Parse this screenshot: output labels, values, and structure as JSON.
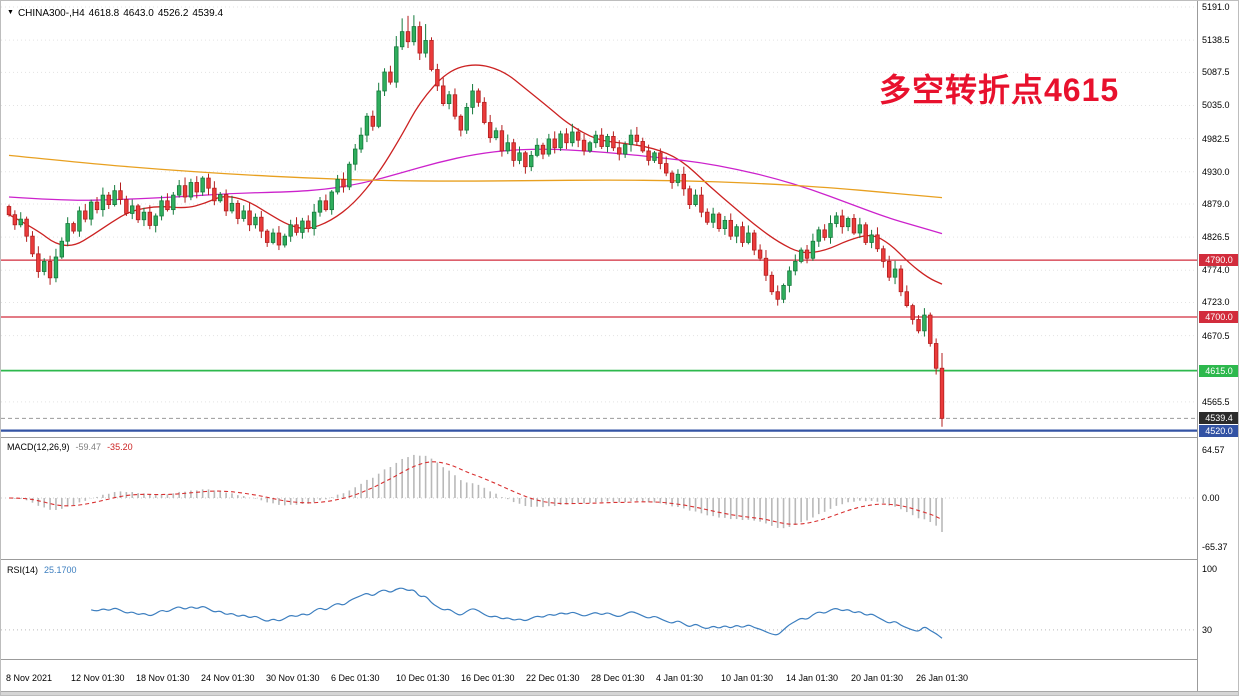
{
  "header": {
    "symbol": "CHINA300-,H4",
    "open": "4618.8",
    "high": "4643.0",
    "low": "4526.2",
    "close": "4539.4"
  },
  "annotation": {
    "text": "多空转折点4615",
    "color": "#e8112d"
  },
  "main_chart": {
    "price_ticks": [
      "5191.0",
      "5138.5",
      "5087.5",
      "5035.0",
      "4982.5",
      "4930.0",
      "4879.0",
      "4826.5",
      "4774.0",
      "4723.0",
      "4670.5",
      "4565.5"
    ],
    "badges": [
      {
        "label": "4790.0",
        "bg": "#d22c3c"
      },
      {
        "label": "4700.0",
        "bg": "#d22c3c"
      },
      {
        "label": "4615.0",
        "bg": "#2db84d"
      },
      {
        "label": "4539.4",
        "bg": "#2b2b2b"
      },
      {
        "label": "4520.0",
        "bg": "#3353a4"
      }
    ],
    "hlines": [
      {
        "price": 4790.0,
        "color": "#d22c3c",
        "style": "solid",
        "width": 1.3
      },
      {
        "price": 4700.0,
        "color": "#d22c3c",
        "style": "solid",
        "width": 1.3
      },
      {
        "price": 4615.0,
        "color": "#2db84d",
        "style": "solid",
        "width": 1.8
      },
      {
        "price": 4520.0,
        "color": "#3353a4",
        "style": "solid",
        "width": 2.2
      },
      {
        "price": 4539.4,
        "color": "#999999",
        "style": "dashed",
        "width": 1
      }
    ]
  },
  "macd_panel": {
    "label": "MACD(12,26,9)",
    "value_main": "-59.47",
    "value_signal": "-35.20",
    "axis": [
      "64.57",
      "0.00",
      "-65.37"
    ]
  },
  "rsi_panel": {
    "label": "RSI(14)",
    "value": "25.1700",
    "axis": [
      "100",
      "30"
    ],
    "level": 30
  },
  "time_axis": {
    "labels": [
      "8 Nov 2021",
      "12 Nov 01:30",
      "18 Nov 01:30",
      "24 Nov 01:30",
      "30 Nov 01:30",
      "6 Dec 01:30",
      "10 Dec 01:30",
      "16 Dec 01:30",
      "22 Dec 01:30",
      "28 Dec 01:30",
      "4 Jan 01:30",
      "10 Jan 01:30",
      "14 Jan 01:30",
      "20 Jan 01:30",
      "26 Jan 01:30"
    ]
  },
  "palette": {
    "bull_fill": "#2fae5d",
    "bull_stroke": "#157a3c",
    "bear_fill": "#ea3b3b",
    "bear_stroke": "#b31e1e",
    "macd_hist": "#b9b9b9",
    "macd_signal": "#d83030",
    "rsi_line": "#3c7ebf",
    "level_red": "#d22c3c",
    "level_green": "#2db84d",
    "level_blue": "#3353a4",
    "grid": "#e3e3e3"
  },
  "chart_data": {
    "type": "candlestick",
    "title": "CHINA300-,H4",
    "symbol": "CHINA300-",
    "timeframe": "H4",
    "x_start": "8 Nov 2021",
    "x_end": "26 Jan 01:30",
    "y_axis_range": [
      4513,
      5199
    ],
    "last_ohlc": {
      "open": 4618.8,
      "high": 4643.0,
      "low": 4526.2,
      "close": 4539.4
    },
    "current_price": 4539.4,
    "horizontal_levels": [
      4790.0,
      4700.0,
      4615.0,
      4520.0
    ],
    "open_first": 4875,
    "closes": [
      4862,
      4846,
      4855,
      4828,
      4800,
      4772,
      4788,
      4762,
      4795,
      4820,
      4848,
      4836,
      4868,
      4855,
      4882,
      4870,
      4893,
      4878,
      4900,
      4886,
      4864,
      4876,
      4854,
      4866,
      4845,
      4860,
      4884,
      4870,
      4893,
      4908,
      4890,
      4913,
      4898,
      4920,
      4904,
      4884,
      4894,
      4868,
      4880,
      4856,
      4868,
      4846,
      4858,
      4836,
      4818,
      4833,
      4814,
      4828,
      4846,
      4834,
      4852,
      4840,
      4866,
      4884,
      4870,
      4898,
      4918,
      4906,
      4942,
      4966,
      4988,
      5018,
      5002,
      5058,
      5088,
      5072,
      5128,
      5152,
      5136,
      5160,
      5118,
      5138,
      5092,
      5066,
      5038,
      5052,
      5018,
      4996,
      5032,
      5058,
      5040,
      5008,
      4984,
      4995,
      4963,
      4976,
      4948,
      4960,
      4938,
      4956,
      4972,
      4958,
      4982,
      4968,
      4990,
      4976,
      4993,
      4980,
      4963,
      4976,
      4988,
      4970,
      4986,
      4968,
      4958,
      4973,
      4988,
      4978,
      4963,
      4948,
      4960,
      4943,
      4928,
      4913,
      4926,
      4903,
      4878,
      4893,
      4866,
      4850,
      4863,
      4840,
      4853,
      4828,
      4843,
      4818,
      4833,
      4806,
      4793,
      4766,
      4740,
      4728,
      4750,
      4773,
      4788,
      4806,
      4793,
      4820,
      4838,
      4826,
      4848,
      4860,
      4843,
      4856,
      4833,
      4846,
      4818,
      4830,
      4808,
      4788,
      4763,
      4776,
      4740,
      4718,
      4696,
      4678,
      4703,
      4658,
      4618.8,
      4539.4
    ],
    "moving_averages": [
      {
        "name": "fast-red",
        "color": "#cc2222",
        "points": [
          [
            0.0,
            4862
          ],
          [
            0.03,
            4838
          ],
          [
            0.05,
            4815
          ],
          [
            0.07,
            4812
          ],
          [
            0.09,
            4830
          ],
          [
            0.11,
            4850
          ],
          [
            0.13,
            4868
          ],
          [
            0.16,
            4876
          ],
          [
            0.19,
            4872
          ],
          [
            0.21,
            4880
          ],
          [
            0.23,
            4893
          ],
          [
            0.255,
            4885
          ],
          [
            0.28,
            4862
          ],
          [
            0.3,
            4845
          ],
          [
            0.32,
            4838
          ],
          [
            0.345,
            4852
          ],
          [
            0.37,
            4880
          ],
          [
            0.395,
            4925
          ],
          [
            0.42,
            4985
          ],
          [
            0.44,
            5040
          ],
          [
            0.47,
            5090
          ],
          [
            0.5,
            5102
          ],
          [
            0.53,
            5090
          ],
          [
            0.555,
            5060
          ],
          [
            0.58,
            5030
          ],
          [
            0.6,
            5005
          ],
          [
            0.63,
            4980
          ],
          [
            0.66,
            4975
          ],
          [
            0.69,
            4968
          ],
          [
            0.72,
            4950
          ],
          [
            0.75,
            4908
          ],
          [
            0.78,
            4870
          ],
          [
            0.8,
            4845
          ],
          [
            0.825,
            4818
          ],
          [
            0.85,
            4800
          ],
          [
            0.875,
            4805
          ],
          [
            0.9,
            4822
          ],
          [
            0.925,
            4832
          ],
          [
            0.945,
            4815
          ],
          [
            0.965,
            4785
          ],
          [
            0.985,
            4762
          ],
          [
            1.0,
            4752
          ]
        ]
      },
      {
        "name": "mid-magenta",
        "color": "#cc22cc",
        "points": [
          [
            0.0,
            4890
          ],
          [
            0.06,
            4884
          ],
          [
            0.12,
            4886
          ],
          [
            0.18,
            4890
          ],
          [
            0.24,
            4896
          ],
          [
            0.3,
            4898
          ],
          [
            0.34,
            4902
          ],
          [
            0.38,
            4912
          ],
          [
            0.42,
            4928
          ],
          [
            0.46,
            4945
          ],
          [
            0.5,
            4958
          ],
          [
            0.54,
            4965
          ],
          [
            0.58,
            4966
          ],
          [
            0.62,
            4963
          ],
          [
            0.66,
            4958
          ],
          [
            0.7,
            4952
          ],
          [
            0.74,
            4945
          ],
          [
            0.78,
            4934
          ],
          [
            0.82,
            4920
          ],
          [
            0.86,
            4902
          ],
          [
            0.9,
            4880
          ],
          [
            0.94,
            4858
          ],
          [
            0.97,
            4845
          ],
          [
            1.0,
            4832
          ]
        ]
      },
      {
        "name": "slow-orange",
        "color": "#e8a020",
        "points": [
          [
            0.0,
            4956
          ],
          [
            0.08,
            4944
          ],
          [
            0.16,
            4934
          ],
          [
            0.24,
            4926
          ],
          [
            0.32,
            4920
          ],
          [
            0.4,
            4916
          ],
          [
            0.48,
            4915
          ],
          [
            0.56,
            4916
          ],
          [
            0.64,
            4917
          ],
          [
            0.72,
            4916
          ],
          [
            0.8,
            4912
          ],
          [
            0.88,
            4905
          ],
          [
            0.94,
            4897
          ],
          [
            1.0,
            4889
          ]
        ]
      }
    ],
    "macd": {
      "fast": 12,
      "slow": 26,
      "signal": 9,
      "last_main": -59.47,
      "last_signal": -35.2,
      "axis_range": [
        -65.37,
        64.57
      ]
    },
    "rsi": {
      "period": 14,
      "last": 25.17,
      "scale": [
        0,
        100
      ],
      "level": 30
    }
  }
}
